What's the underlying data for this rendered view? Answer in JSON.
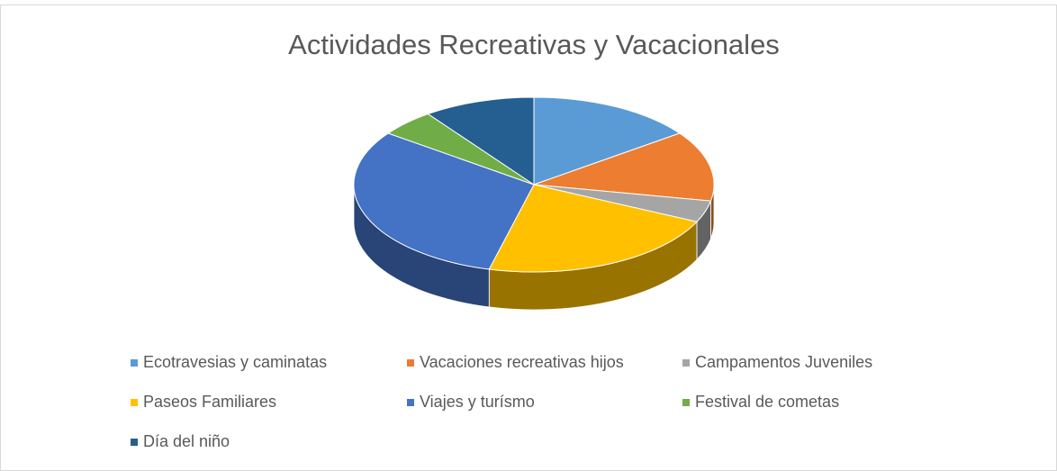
{
  "chart_data": {
    "type": "pie",
    "title": "Actividades Recreativas y Vacacionales",
    "categories": [
      "Ecotravesias y caminatas",
      "Vacaciones recreativas hijos",
      "Campamentos Juveniles",
      "Paseos Familiares",
      "Viajes y turísmo",
      "Festival de cometas",
      "Día del niño"
    ],
    "values": [
      15,
      13,
      4,
      22,
      31,
      5,
      10
    ],
    "colors": [
      "#5b9bd5",
      "#ed7d31",
      "#a5a5a5",
      "#ffc000",
      "#4472c4",
      "#70ad47",
      "#255e91"
    ],
    "legend": "bottom"
  }
}
